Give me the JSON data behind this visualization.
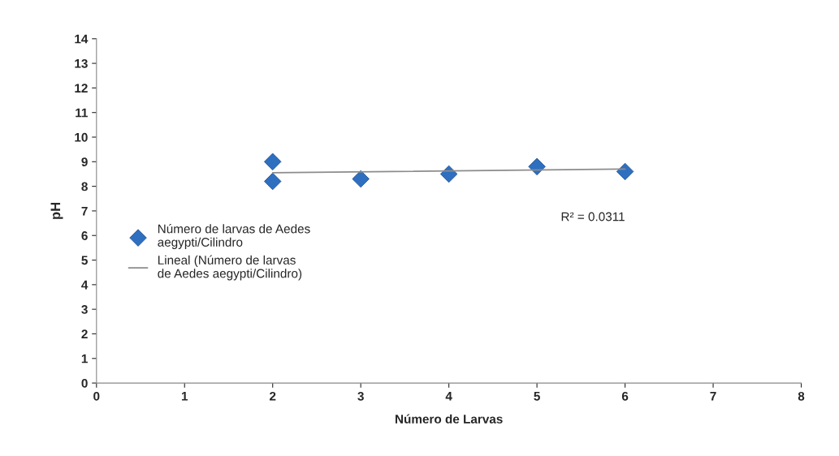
{
  "chart_data": {
    "type": "scatter",
    "xlabel": "Número de Larvas",
    "ylabel": "pH",
    "xlim": [
      0,
      8
    ],
    "xticks": [
      0,
      1,
      2,
      3,
      4,
      5,
      6,
      7,
      8
    ],
    "ylim": [
      0,
      14
    ],
    "yticks": [
      0,
      1,
      2,
      3,
      4,
      5,
      6,
      7,
      8,
      9,
      10,
      11,
      12,
      13,
      14
    ],
    "grid": false,
    "legend": "left",
    "series": [
      {
        "name": "Número de larvas de Aedes aegypti/Cilindro",
        "marker": "diamond",
        "color": "#2e6fc0",
        "x": [
          2,
          2,
          3,
          4,
          5,
          6
        ],
        "values": [
          9.0,
          8.2,
          8.3,
          8.5,
          8.8,
          8.6
        ]
      },
      {
        "name": "Lineal (Número de larvas de Aedes aegypti/Cilindro)",
        "type": "line",
        "marker": "none",
        "line_style": "solid",
        "color": "#8c8c8c",
        "x": [
          2,
          6
        ],
        "values": [
          8.55,
          8.7
        ]
      }
    ],
    "annotations": [
      "R² = 0.0311"
    ]
  }
}
